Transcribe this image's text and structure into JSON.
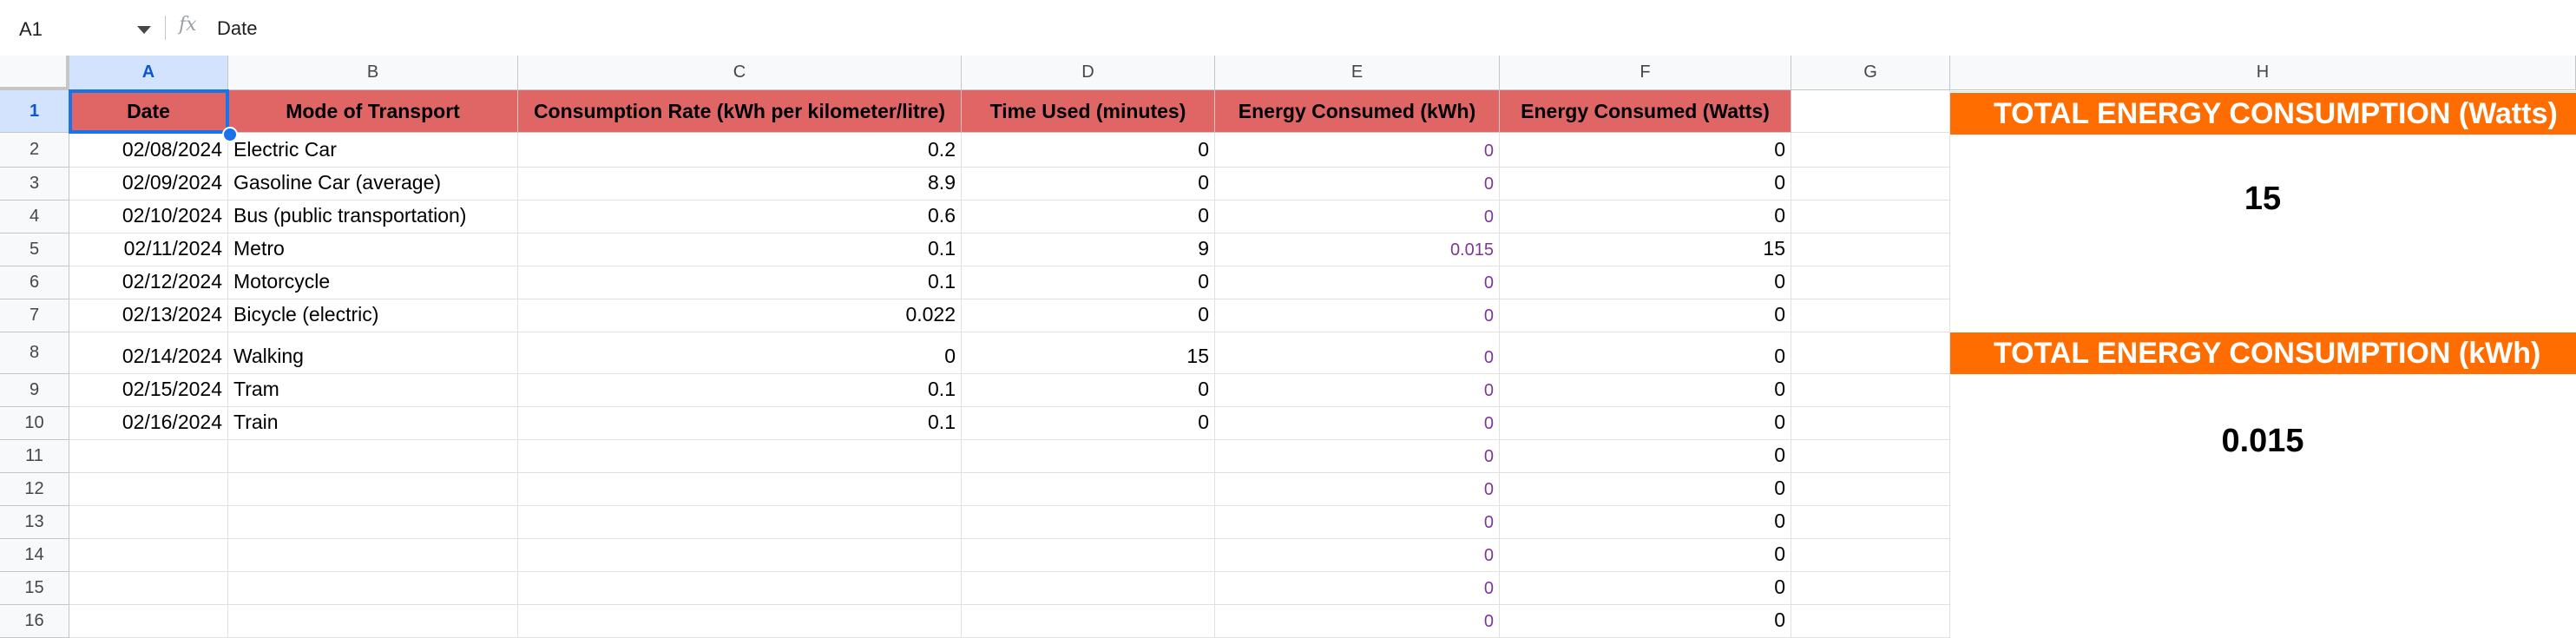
{
  "formula_bar": {
    "name_box": "A1",
    "fx": "fx",
    "value": "Date"
  },
  "columns": [
    "A",
    "B",
    "C",
    "D",
    "E",
    "F",
    "G",
    "H"
  ],
  "rows": [
    "1",
    "2",
    "3",
    "4",
    "5",
    "6",
    "7",
    "8",
    "9",
    "10",
    "11",
    "12",
    "13",
    "14",
    "15",
    "16"
  ],
  "headers": {
    "date": "Date",
    "mode": "Mode of Transport",
    "rate": "Consumption Rate (kWh per kilometer/litre)",
    "time": "Time Used (minutes)",
    "kwh": "Energy Consumed (kWh)",
    "watts": "Energy Consumed (Watts)"
  },
  "data_rows": [
    {
      "date": "02/08/2024",
      "mode": "Electric Car",
      "rate": "0.2",
      "time": "0",
      "kwh": "0",
      "watts": "0"
    },
    {
      "date": "02/09/2024",
      "mode": "Gasoline Car (average)",
      "rate": "8.9",
      "time": "0",
      "kwh": "0",
      "watts": "0"
    },
    {
      "date": "02/10/2024",
      "mode": "Bus (public transportation)",
      "rate": "0.6",
      "time": "0",
      "kwh": "0",
      "watts": "0"
    },
    {
      "date": "02/11/2024",
      "mode": "Metro",
      "rate": "0.1",
      "time": "9",
      "kwh": "0.015",
      "watts": "15"
    },
    {
      "date": "02/12/2024",
      "mode": "Motorcycle",
      "rate": "0.1",
      "time": "0",
      "kwh": "0",
      "watts": "0"
    },
    {
      "date": "02/13/2024",
      "mode": "Bicycle (electric)",
      "rate": "0.022",
      "time": "0",
      "kwh": "0",
      "watts": "0"
    },
    {
      "date": "02/14/2024",
      "mode": "Walking",
      "rate": "0",
      "time": "15",
      "kwh": "0",
      "watts": "0"
    },
    {
      "date": "02/15/2024",
      "mode": "Tram",
      "rate": "0.1",
      "time": "0",
      "kwh": "0",
      "watts": "0"
    },
    {
      "date": "02/16/2024",
      "mode": "Train",
      "rate": "0.1",
      "time": "0",
      "kwh": "0",
      "watts": "0"
    },
    {
      "date": "",
      "mode": "",
      "rate": "",
      "time": "",
      "kwh": "0",
      "watts": "0"
    },
    {
      "date": "",
      "mode": "",
      "rate": "",
      "time": "",
      "kwh": "0",
      "watts": "0"
    },
    {
      "date": "",
      "mode": "",
      "rate": "",
      "time": "",
      "kwh": "0",
      "watts": "0"
    },
    {
      "date": "",
      "mode": "",
      "rate": "",
      "time": "",
      "kwh": "0",
      "watts": "0"
    },
    {
      "date": "",
      "mode": "",
      "rate": "",
      "time": "",
      "kwh": "0",
      "watts": "0"
    },
    {
      "date": "",
      "mode": "",
      "rate": "",
      "time": "",
      "kwh": "0",
      "watts": "0"
    }
  ],
  "summary": {
    "watts_title": "TOTAL ENERGY CONSUMPTION (Watts)",
    "watts_value": "15",
    "kwh_title": "TOTAL ENERGY CONSUMPTION (kWh)",
    "kwh_value": "0.015"
  },
  "colors": {
    "header_fill": "#e06666",
    "summary_fill": "#ff6d01",
    "selection": "#1a73e8",
    "formula_result_text": "#7e3794"
  }
}
